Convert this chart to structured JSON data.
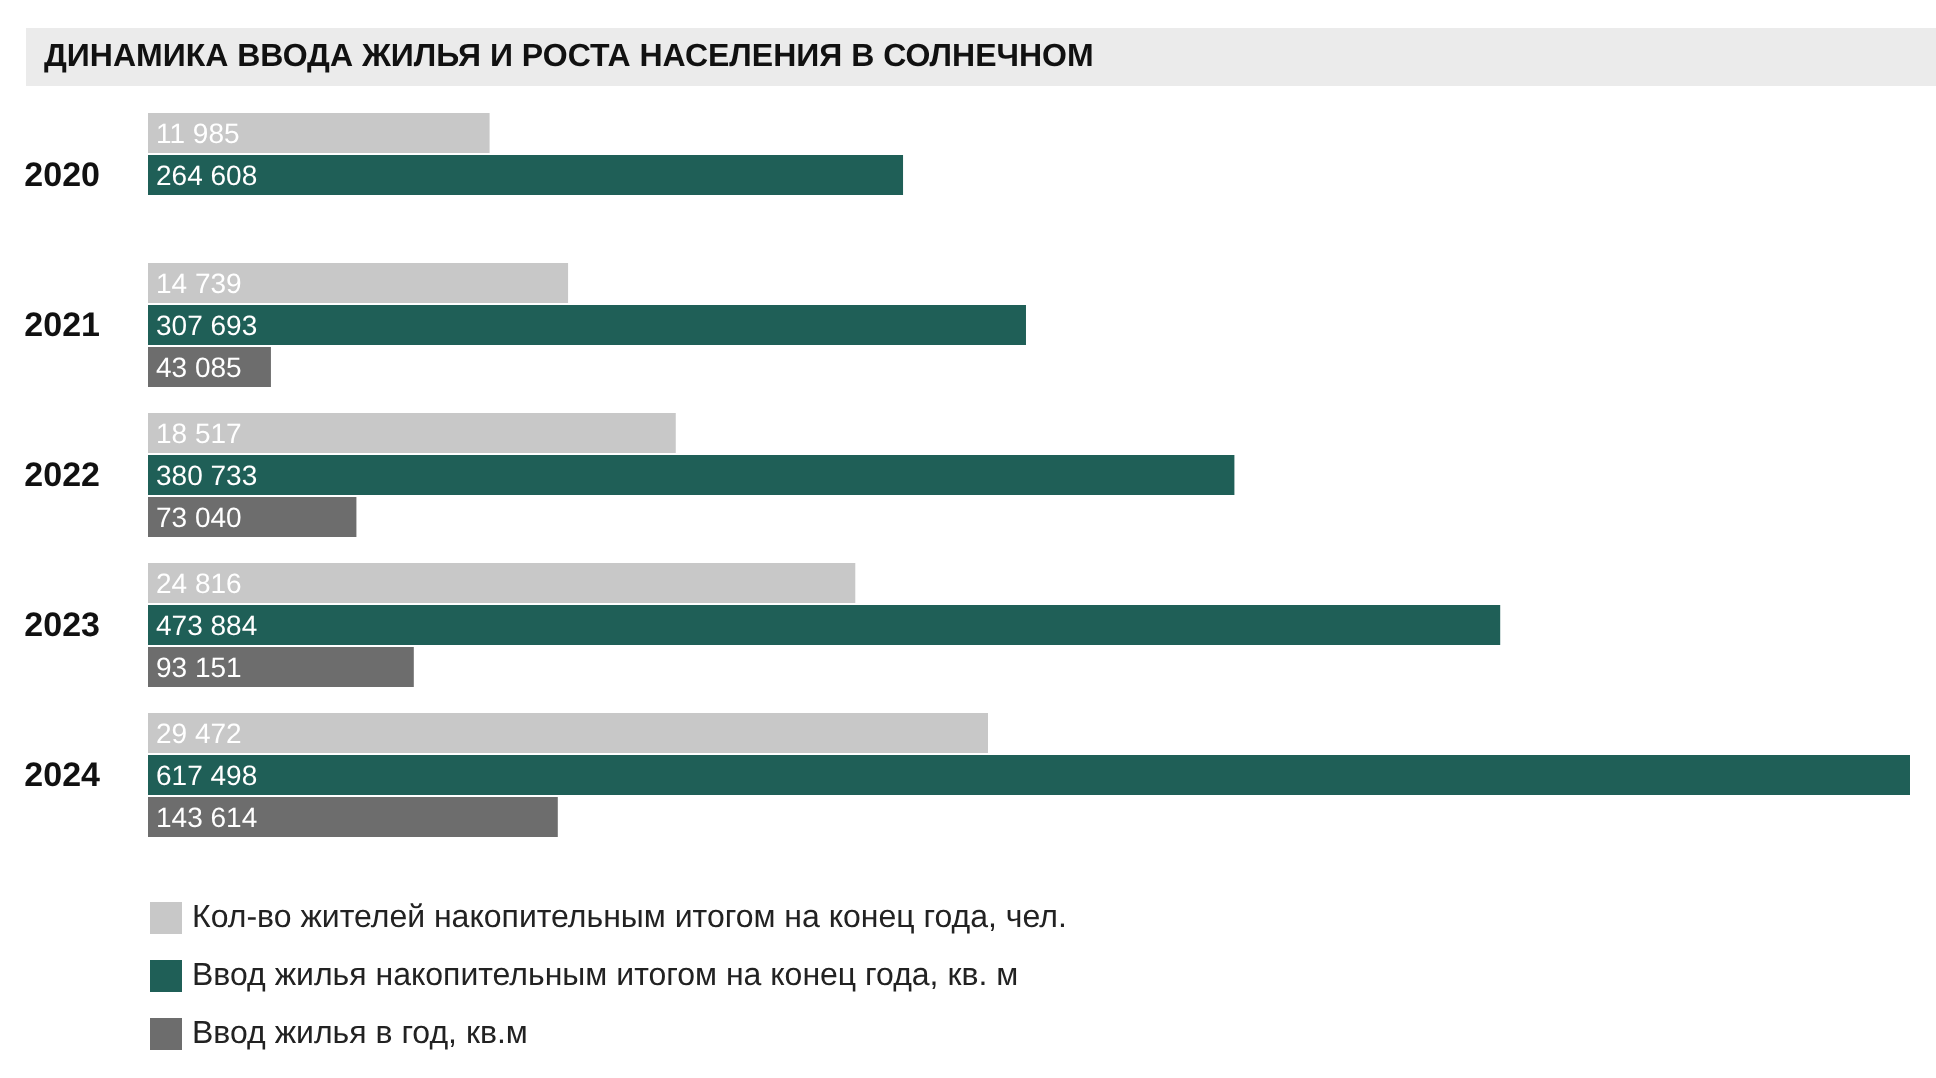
{
  "chart_data": [
    {
      "type": "bar",
      "orientation": "horizontal",
      "title": "ДИНАМИКА ВВОДА ЖИЛЬЯ И РОСТА НАСЕЛЕНИЯ В СОЛНЕЧНОМ",
      "categories": [
        "2020",
        "2021",
        "2022",
        "2023",
        "2024"
      ],
      "series": [
        {
          "name": "Кол-во жителей накопительным итогом на конец года, чел.",
          "color": "#c8c8c8",
          "values": [
            11985,
            14739,
            18517,
            24816,
            29472
          ],
          "value_labels": [
            "11 985",
            "14 739",
            "18 517",
            "24 816",
            "29 472"
          ]
        }
      ],
      "tick_labels": "y",
      "legend": "bottom left"
    },
    {
      "type": "bar",
      "orientation": "horizontal",
      "categories": [
        "2020",
        "2021",
        "2022",
        "2023",
        "2024"
      ],
      "series": [
        {
          "name": "Ввод жилья накопительным итогом на конец года, кв. м",
          "color": "#1f5f57",
          "values": [
            264608,
            307693,
            380733,
            473884,
            617498
          ],
          "value_labels": [
            "264 608",
            "307 693",
            "380 733",
            "473 884",
            "617 498"
          ]
        },
        {
          "name": "Ввод жилья в год, кв.м",
          "color": "#6d6d6d",
          "values": [
            null,
            43085,
            73040,
            93151,
            143614
          ],
          "value_labels": [
            null,
            "43 085",
            "73 040",
            "93 151",
            "143 614"
          ]
        }
      ],
      "tick_labels": false,
      "legend": "bottom left"
    }
  ]
}
